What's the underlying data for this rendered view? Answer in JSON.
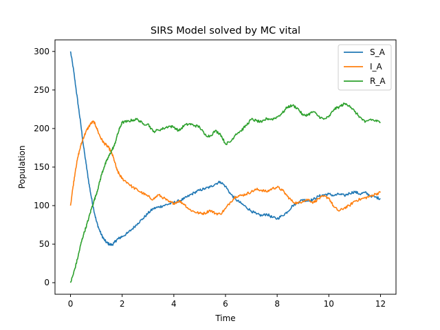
{
  "chart_data": {
    "type": "line",
    "title": "SIRS Model solved by MC vital",
    "xlabel": "Time",
    "ylabel": "Population",
    "xlim": [
      -0.6,
      12.6
    ],
    "ylim": [
      -15,
      315
    ],
    "xticks": [
      0,
      2,
      4,
      6,
      8,
      10,
      12
    ],
    "yticks": [
      0,
      50,
      100,
      150,
      200,
      250,
      300
    ],
    "legend_position": "top-right",
    "grid": false,
    "series": [
      {
        "name": "S_A",
        "color": "#1f77b4",
        "points": [
          [
            0,
            300
          ],
          [
            0.1,
            280
          ],
          [
            0.2,
            255
          ],
          [
            0.3,
            230
          ],
          [
            0.4,
            205
          ],
          [
            0.5,
            178
          ],
          [
            0.6,
            155
          ],
          [
            0.7,
            132
          ],
          [
            0.8,
            112
          ],
          [
            0.9,
            95
          ],
          [
            1.0,
            80
          ],
          [
            1.1,
            70
          ],
          [
            1.2,
            62
          ],
          [
            1.3,
            56
          ],
          [
            1.4,
            52
          ],
          [
            1.5,
            50
          ],
          [
            1.6,
            49
          ],
          [
            1.7,
            52
          ],
          [
            1.8,
            56
          ],
          [
            1.9,
            58
          ],
          [
            2.0,
            60
          ],
          [
            2.2,
            64
          ],
          [
            2.4,
            70
          ],
          [
            2.6,
            77
          ],
          [
            2.8,
            83
          ],
          [
            3.0,
            90
          ],
          [
            3.2,
            96
          ],
          [
            3.4,
            98
          ],
          [
            3.6,
            100
          ],
          [
            3.8,
            102
          ],
          [
            4.0,
            104
          ],
          [
            4.2,
            106
          ],
          [
            4.4,
            109
          ],
          [
            4.6,
            113
          ],
          [
            4.8,
            117
          ],
          [
            5.0,
            120
          ],
          [
            5.2,
            122
          ],
          [
            5.4,
            124
          ],
          [
            5.6,
            128
          ],
          [
            5.8,
            131
          ],
          [
            6.0,
            125
          ],
          [
            6.2,
            115
          ],
          [
            6.4,
            108
          ],
          [
            6.6,
            103
          ],
          [
            6.8,
            98
          ],
          [
            7.0,
            93
          ],
          [
            7.2,
            89
          ],
          [
            7.4,
            87
          ],
          [
            7.6,
            89
          ],
          [
            7.8,
            85
          ],
          [
            8.0,
            83
          ],
          [
            8.2,
            87
          ],
          [
            8.4,
            92
          ],
          [
            8.6,
            100
          ],
          [
            8.8,
            104
          ],
          [
            9.0,
            108
          ],
          [
            9.2,
            106
          ],
          [
            9.4,
            108
          ],
          [
            9.6,
            112
          ],
          [
            9.8,
            114
          ],
          [
            10.0,
            115
          ],
          [
            10.2,
            113
          ],
          [
            10.4,
            115
          ],
          [
            10.6,
            113
          ],
          [
            10.8,
            116
          ],
          [
            11.0,
            118
          ],
          [
            11.2,
            115
          ],
          [
            11.4,
            117
          ],
          [
            11.6,
            113
          ],
          [
            11.8,
            111
          ],
          [
            12.0,
            109
          ]
        ]
      },
      {
        "name": "I_A",
        "color": "#ff7f0e",
        "points": [
          [
            0,
            100
          ],
          [
            0.1,
            125
          ],
          [
            0.2,
            148
          ],
          [
            0.3,
            165
          ],
          [
            0.4,
            178
          ],
          [
            0.5,
            188
          ],
          [
            0.6,
            196
          ],
          [
            0.7,
            202
          ],
          [
            0.8,
            207
          ],
          [
            0.9,
            209
          ],
          [
            1.0,
            202
          ],
          [
            1.1,
            193
          ],
          [
            1.2,
            186
          ],
          [
            1.3,
            181
          ],
          [
            1.4,
            178
          ],
          [
            1.5,
            174
          ],
          [
            1.6,
            168
          ],
          [
            1.7,
            158
          ],
          [
            1.8,
            146
          ],
          [
            1.9,
            140
          ],
          [
            2.0,
            135
          ],
          [
            2.2,
            130
          ],
          [
            2.4,
            124
          ],
          [
            2.6,
            120
          ],
          [
            2.8,
            116
          ],
          [
            3.0,
            112
          ],
          [
            3.2,
            108
          ],
          [
            3.4,
            114
          ],
          [
            3.6,
            110
          ],
          [
            3.8,
            105
          ],
          [
            4.0,
            103
          ],
          [
            4.2,
            106
          ],
          [
            4.4,
            102
          ],
          [
            4.6,
            95
          ],
          [
            4.8,
            92
          ],
          [
            5.0,
            90
          ],
          [
            5.2,
            90
          ],
          [
            5.4,
            94
          ],
          [
            5.6,
            90
          ],
          [
            5.8,
            89
          ],
          [
            6.0,
            96
          ],
          [
            6.2,
            105
          ],
          [
            6.4,
            112
          ],
          [
            6.6,
            113
          ],
          [
            6.8,
            115
          ],
          [
            7.0,
            118
          ],
          [
            7.2,
            121
          ],
          [
            7.4,
            120
          ],
          [
            7.6,
            118
          ],
          [
            7.8,
            122
          ],
          [
            8.0,
            124
          ],
          [
            8.2,
            120
          ],
          [
            8.4,
            112
          ],
          [
            8.6,
            105
          ],
          [
            8.8,
            103
          ],
          [
            9.0,
            106
          ],
          [
            9.2,
            108
          ],
          [
            9.4,
            104
          ],
          [
            9.6,
            109
          ],
          [
            9.8,
            112
          ],
          [
            10.0,
            110
          ],
          [
            10.2,
            98
          ],
          [
            10.4,
            93
          ],
          [
            10.6,
            97
          ],
          [
            10.8,
            100
          ],
          [
            11.0,
            106
          ],
          [
            11.2,
            108
          ],
          [
            11.4,
            110
          ],
          [
            11.6,
            112
          ],
          [
            11.8,
            115
          ],
          [
            12.0,
            117
          ]
        ]
      },
      {
        "name": "R_A",
        "color": "#2ca02c",
        "points": [
          [
            0,
            0
          ],
          [
            0.1,
            10
          ],
          [
            0.2,
            22
          ],
          [
            0.3,
            35
          ],
          [
            0.4,
            50
          ],
          [
            0.5,
            62
          ],
          [
            0.6,
            72
          ],
          [
            0.7,
            83
          ],
          [
            0.8,
            95
          ],
          [
            0.9,
            105
          ],
          [
            1.0,
            115
          ],
          [
            1.1,
            127
          ],
          [
            1.2,
            140
          ],
          [
            1.3,
            150
          ],
          [
            1.4,
            158
          ],
          [
            1.5,
            165
          ],
          [
            1.6,
            172
          ],
          [
            1.7,
            178
          ],
          [
            1.8,
            190
          ],
          [
            1.9,
            200
          ],
          [
            2.0,
            208
          ],
          [
            2.2,
            209
          ],
          [
            2.4,
            211
          ],
          [
            2.6,
            212
          ],
          [
            2.8,
            206
          ],
          [
            3.0,
            206
          ],
          [
            3.2,
            196
          ],
          [
            3.4,
            198
          ],
          [
            3.6,
            200
          ],
          [
            3.8,
            203
          ],
          [
            4.0,
            202
          ],
          [
            4.2,
            197
          ],
          [
            4.4,
            204
          ],
          [
            4.6,
            206
          ],
          [
            4.8,
            204
          ],
          [
            5.0,
            202
          ],
          [
            5.2,
            192
          ],
          [
            5.4,
            190
          ],
          [
            5.6,
            197
          ],
          [
            5.8,
            193
          ],
          [
            6.0,
            180
          ],
          [
            6.2,
            183
          ],
          [
            6.4,
            193
          ],
          [
            6.6,
            197
          ],
          [
            6.8,
            204
          ],
          [
            7.0,
            212
          ],
          [
            7.2,
            210
          ],
          [
            7.4,
            208
          ],
          [
            7.6,
            213
          ],
          [
            7.8,
            212
          ],
          [
            8.0,
            215
          ],
          [
            8.2,
            220
          ],
          [
            8.4,
            228
          ],
          [
            8.6,
            230
          ],
          [
            8.8,
            226
          ],
          [
            9.0,
            217
          ],
          [
            9.2,
            218
          ],
          [
            9.4,
            222
          ],
          [
            9.6,
            216
          ],
          [
            9.8,
            212
          ],
          [
            10.0,
            215
          ],
          [
            10.2,
            225
          ],
          [
            10.4,
            228
          ],
          [
            10.6,
            232
          ],
          [
            10.8,
            230
          ],
          [
            11.0,
            222
          ],
          [
            11.2,
            215
          ],
          [
            11.4,
            208
          ],
          [
            11.6,
            212
          ],
          [
            11.8,
            210
          ],
          [
            12.0,
            208
          ]
        ]
      }
    ]
  }
}
